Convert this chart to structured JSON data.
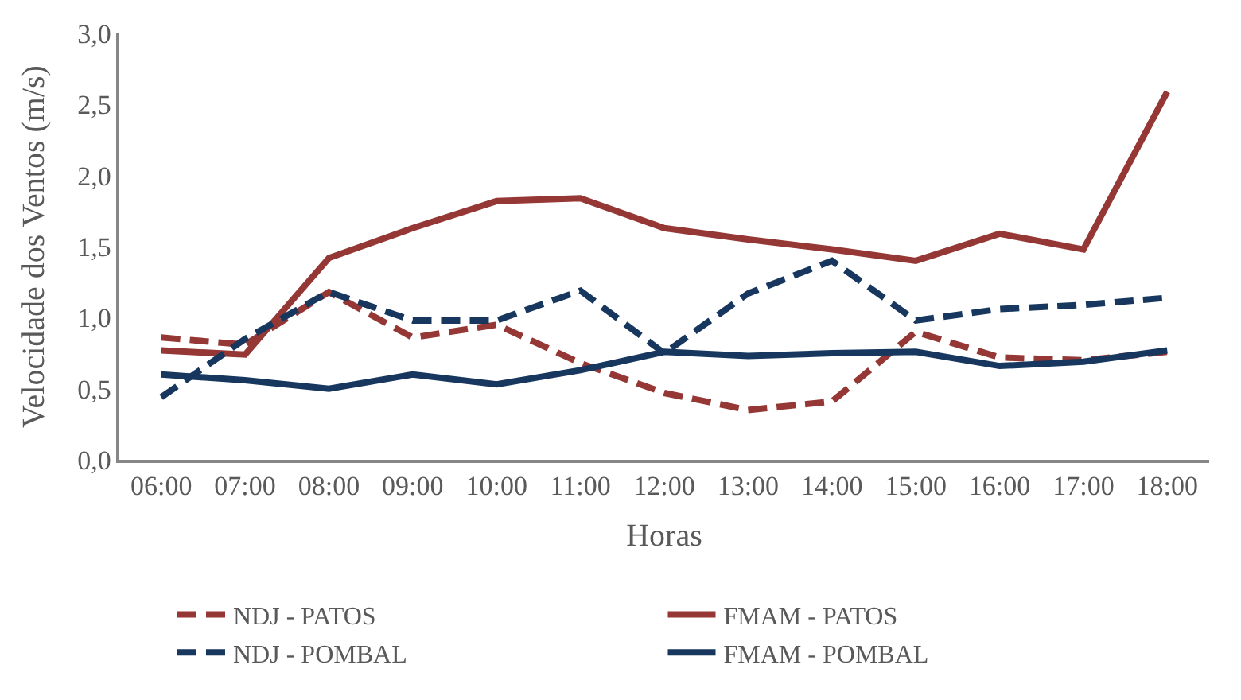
{
  "chart_data": {
    "type": "line",
    "xlabel": "Horas",
    "ylabel": "Velocidade dos Ventos (m/s)",
    "categories": [
      "06:00",
      "07:00",
      "08:00",
      "09:00",
      "10:00",
      "11:00",
      "12:00",
      "13:00",
      "14:00",
      "15:00",
      "16:00",
      "17:00",
      "18:00"
    ],
    "series": [
      {
        "name": "NDJ - PATOS",
        "color": "#953735",
        "line_style": "dashed",
        "values": [
          0.86,
          0.81,
          1.18,
          0.86,
          0.95,
          0.68,
          0.47,
          0.35,
          0.41,
          0.9,
          0.72,
          0.7,
          0.76
        ]
      },
      {
        "name": "FMAM - PATOS",
        "color": "#953735",
        "line_style": "solid",
        "values": [
          0.77,
          0.74,
          1.42,
          1.63,
          1.82,
          1.84,
          1.63,
          1.55,
          1.48,
          1.4,
          1.59,
          1.48,
          2.59
        ]
      },
      {
        "name": "NDJ - POMBAL",
        "color": "#17375e",
        "line_style": "dashed",
        "values": [
          0.44,
          0.85,
          1.18,
          0.98,
          0.98,
          1.19,
          0.75,
          1.17,
          1.4,
          0.98,
          1.06,
          1.09,
          1.14
        ]
      },
      {
        "name": "FMAM - POMBAL",
        "color": "#17375e",
        "line_style": "solid",
        "values": [
          0.6,
          0.56,
          0.5,
          0.6,
          0.53,
          0.63,
          0.76,
          0.73,
          0.75,
          0.76,
          0.66,
          0.69,
          0.77
        ]
      }
    ],
    "ylim": [
      0,
      3
    ],
    "yticks": [
      {
        "value": 0,
        "label": "0,0"
      },
      {
        "value": 0.5,
        "label": "0,5"
      },
      {
        "value": 1,
        "label": "1,0"
      },
      {
        "value": 1.5,
        "label": "1,5"
      },
      {
        "value": 2,
        "label": "2,0"
      },
      {
        "value": 2.5,
        "label": "2,5"
      },
      {
        "value": 3,
        "label": "3,0"
      }
    ],
    "legend": "bottom",
    "marker": "none"
  }
}
